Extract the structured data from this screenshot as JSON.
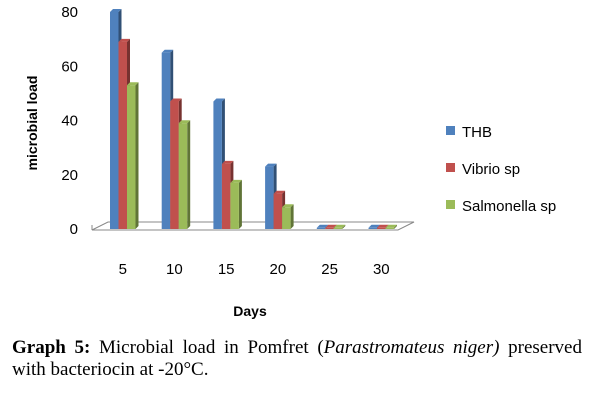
{
  "chart_data": {
    "type": "bar",
    "categories": [
      "5",
      "10",
      "15",
      "20",
      "25",
      "30"
    ],
    "series": [
      {
        "name": "THB",
        "values": [
          80,
          65,
          47,
          23,
          0,
          0
        ],
        "color": "#4f81bd"
      },
      {
        "name": "Vibrio sp",
        "values": [
          69,
          47,
          24,
          13,
          0,
          0
        ],
        "color": "#c0504d"
      },
      {
        "name": "Salmonella sp",
        "values": [
          53,
          39,
          17,
          8,
          0,
          0
        ],
        "color": "#9bbb59"
      }
    ],
    "xlabel": "Days",
    "ylabel": "microbial load",
    "ylim": [
      0,
      80
    ],
    "yticks": [
      "0",
      "20",
      "40",
      "60",
      "80"
    ],
    "grid": false,
    "legend": "right",
    "style": "3d-column"
  },
  "caption": {
    "label": "Graph 5:",
    "text_before": " Microbial load in Pomfret (",
    "italic": "Parastromateus niger)",
    "text_after": " preserved with bacteriocin at -20°C."
  }
}
